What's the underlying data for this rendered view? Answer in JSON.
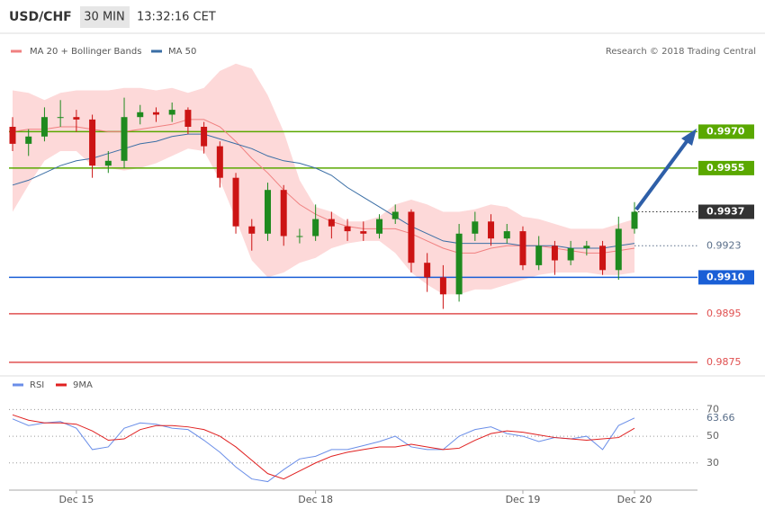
{
  "header": {
    "symbol": "USD/CHF",
    "interval": "30 MIN",
    "time": "13:32:16 CET"
  },
  "chart_data": [
    {
      "type": "candlestick",
      "source": "Research © 2018 Trading Central",
      "up_color": "#1f8a1f",
      "down_color": "#cc1414",
      "ylim": [
        0.987,
        1.0002
      ],
      "open": [
        0.9972,
        0.9965,
        0.9968,
        0.9976,
        0.9976,
        0.9975,
        0.9956,
        0.9958,
        0.9976,
        0.9978,
        0.9977,
        0.9979,
        0.9972,
        0.9964,
        0.9951,
        0.9931,
        0.9928,
        0.9946,
        0.9927,
        0.9927,
        0.9934,
        0.9931,
        0.9929,
        0.9928,
        0.9934,
        0.9937,
        0.9916,
        0.991,
        0.9903,
        0.9928,
        0.9933,
        0.9926,
        0.9929,
        0.9915,
        0.9923,
        0.9917,
        0.9922,
        0.9923,
        0.9913,
        0.993
      ],
      "high": [
        0.9976,
        0.9971,
        0.998,
        0.9983,
        0.9979,
        0.9977,
        0.9962,
        0.9984,
        0.9981,
        0.998,
        0.9982,
        0.998,
        0.9974,
        0.9966,
        0.9953,
        0.9934,
        0.9949,
        0.9948,
        0.993,
        0.994,
        0.9937,
        0.9934,
        0.9933,
        0.9936,
        0.994,
        0.9938,
        0.992,
        0.9915,
        0.9932,
        0.9937,
        0.9936,
        0.9932,
        0.9931,
        0.9927,
        0.9925,
        0.9925,
        0.9925,
        0.9925,
        0.9935,
        0.9941
      ],
      "low": [
        0.9962,
        0.996,
        0.9966,
        0.9972,
        0.997,
        0.9951,
        0.9953,
        0.9955,
        0.9973,
        0.9974,
        0.9974,
        0.9969,
        0.9961,
        0.9947,
        0.9928,
        0.9921,
        0.9925,
        0.9923,
        0.9924,
        0.9925,
        0.9926,
        0.9925,
        0.9925,
        0.9926,
        0.9932,
        0.9912,
        0.9904,
        0.9897,
        0.99,
        0.9925,
        0.9923,
        0.9924,
        0.9913,
        0.9913,
        0.9911,
        0.9915,
        0.9919,
        0.9911,
        0.9909,
        0.9928
      ],
      "close": [
        0.9965,
        0.9968,
        0.9976,
        0.9976,
        0.9975,
        0.9956,
        0.9958,
        0.9976,
        0.9978,
        0.9977,
        0.9979,
        0.9972,
        0.9964,
        0.9951,
        0.9931,
        0.9928,
        0.9946,
        0.9927,
        0.9927,
        0.9934,
        0.9931,
        0.9929,
        0.9928,
        0.9934,
        0.9937,
        0.9916,
        0.991,
        0.9903,
        0.9928,
        0.9933,
        0.9926,
        0.9929,
        0.9915,
        0.9923,
        0.9917,
        0.9922,
        0.9923,
        0.9913,
        0.993,
        0.9937
      ],
      "series": [
        {
          "name": "MA 20 + Bollinger Bands",
          "color": "#f08080",
          "band_color": "#fdd9d9",
          "values": [
            0.997,
            0.9971,
            0.9971,
            0.9972,
            0.9972,
            0.9971,
            0.997,
            0.997,
            0.9971,
            0.9972,
            0.9973,
            0.9975,
            0.9975,
            0.9972,
            0.9966,
            0.9959,
            0.9953,
            0.9946,
            0.994,
            0.9936,
            0.9933,
            0.9931,
            0.993,
            0.993,
            0.993,
            0.9928,
            0.9925,
            0.9922,
            0.992,
            0.992,
            0.9922,
            0.9923,
            0.9923,
            0.9923,
            0.9922,
            0.9921,
            0.992,
            0.992,
            0.9921,
            0.9922
          ],
          "upper": [
            0.9987,
            0.9986,
            0.9983,
            0.9986,
            0.9987,
            0.9987,
            0.9987,
            0.9988,
            0.9988,
            0.9987,
            0.9988,
            0.9986,
            0.9988,
            0.9995,
            0.9998,
            0.9996,
            0.9985,
            0.997,
            0.995,
            0.9939,
            0.9937,
            0.9933,
            0.9933,
            0.9935,
            0.994,
            0.9942,
            0.994,
            0.9937,
            0.9937,
            0.9938,
            0.994,
            0.9939,
            0.9935,
            0.9934,
            0.9932,
            0.993,
            0.993,
            0.993,
            0.9932,
            0.9934
          ],
          "lower": [
            0.9937,
            0.9948,
            0.9958,
            0.9962,
            0.9962,
            0.9956,
            0.9955,
            0.9954,
            0.9955,
            0.9957,
            0.996,
            0.9963,
            0.9962,
            0.995,
            0.9934,
            0.9917,
            0.991,
            0.9912,
            0.9916,
            0.9918,
            0.9922,
            0.9924,
            0.9925,
            0.9925,
            0.992,
            0.9912,
            0.9907,
            0.9903,
            0.9903,
            0.9905,
            0.9905,
            0.9907,
            0.9909,
            0.9911,
            0.9912,
            0.9912,
            0.9912,
            0.9911,
            0.9911,
            0.9912
          ]
        },
        {
          "name": "MA 50",
          "color": "#3a6ea5",
          "values": [
            0.9948,
            0.995,
            0.9953,
            0.9956,
            0.9958,
            0.9959,
            0.9961,
            0.9963,
            0.9965,
            0.9966,
            0.9968,
            0.9969,
            0.9969,
            0.9967,
            0.9965,
            0.9963,
            0.996,
            0.9958,
            0.9957,
            0.9955,
            0.9952,
            0.9947,
            0.9943,
            0.9939,
            0.9935,
            0.9931,
            0.9928,
            0.9925,
            0.9924,
            0.9924,
            0.9924,
            0.9924,
            0.9923,
            0.9923,
            0.9923,
            0.9922,
            0.9922,
            0.9922,
            0.9923,
            0.9924
          ]
        }
      ],
      "levels": [
        {
          "value": 0.997,
          "label": "0.9970",
          "color": "#5aa800",
          "style": "solid",
          "box": true
        },
        {
          "value": 0.9955,
          "label": "0.9955",
          "color": "#5aa800",
          "style": "solid",
          "box": true
        },
        {
          "value": 0.9937,
          "label": "0.9937",
          "color": "#333333",
          "style": "dotted",
          "box": true
        },
        {
          "value": 0.9923,
          "label": "0.9923",
          "color": "#5a6f8a",
          "style": "dotted",
          "box": false
        },
        {
          "value": 0.991,
          "label": "0.9910",
          "color": "#1a5fd6",
          "style": "solid",
          "box": true
        },
        {
          "value": 0.9895,
          "label": "0.9895",
          "color": "#e05050",
          "style": "solid",
          "box": false
        },
        {
          "value": 0.9875,
          "label": "0.9875",
          "color": "#e05050",
          "style": "solid",
          "box": false
        }
      ]
    },
    {
      "type": "line",
      "categories": [
        null,
        null,
        null,
        null,
        "Dec 15",
        null,
        null,
        null,
        null,
        null,
        null,
        null,
        null,
        null,
        null,
        null,
        null,
        null,
        null,
        "Dec 18",
        null,
        null,
        null,
        null,
        null,
        null,
        null,
        null,
        null,
        null,
        null,
        null,
        "Dec 19",
        null,
        null,
        null,
        null,
        null,
        null,
        "Dec 20"
      ],
      "ylim": [
        13,
        77
      ],
      "yticks": [
        30,
        50,
        70
      ],
      "grid": true,
      "series": [
        {
          "name": "RSI",
          "color": "#6a8ee8",
          "values": [
            63,
            58,
            60,
            61,
            56,
            40,
            42,
            56,
            60,
            59,
            56,
            55,
            47,
            38,
            27,
            18,
            16,
            25,
            33,
            35,
            40,
            40,
            43,
            46,
            50,
            42,
            40,
            40,
            50,
            55,
            57,
            52,
            50,
            46,
            49,
            48,
            50,
            40,
            58,
            63.66
          ]
        },
        {
          "name": "9MA",
          "color": "#e02020",
          "values": [
            66,
            62,
            60,
            60,
            59,
            54,
            47,
            48,
            55,
            58,
            58,
            57,
            55,
            50,
            42,
            32,
            22,
            18,
            24,
            30,
            35,
            38,
            40,
            42,
            42,
            44,
            42,
            40,
            41,
            47,
            52,
            54,
            53,
            51,
            49,
            48,
            47,
            48,
            49,
            56
          ]
        }
      ]
    }
  ]
}
